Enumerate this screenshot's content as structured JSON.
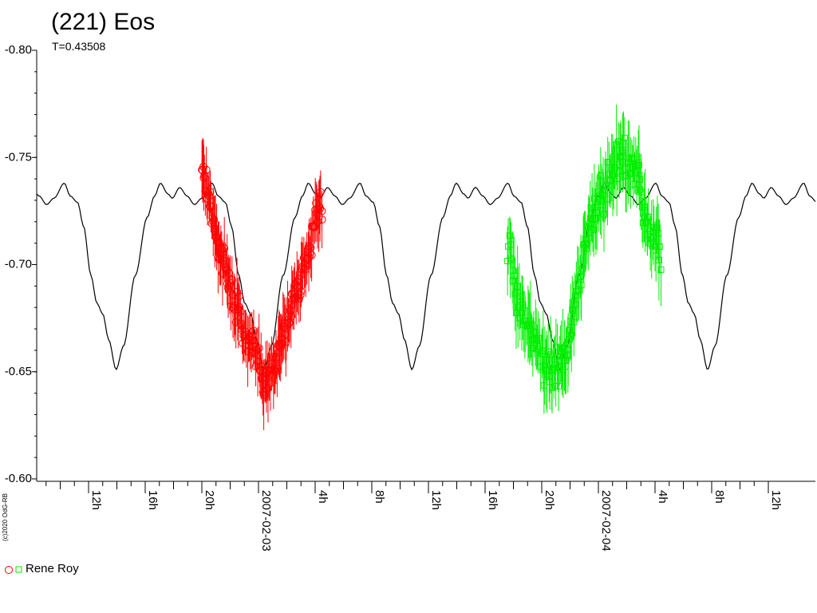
{
  "chart_data": {
    "type": "scatter",
    "title": "(221) Eos",
    "subtitle": "T=0.43508",
    "y_axis": {
      "range": [
        -0.8,
        -0.6
      ],
      "inverted": true,
      "ticks": [
        "-0.80",
        "-0.75",
        "-0.70",
        "-0.65",
        "-0.60"
      ],
      "tick_values": [
        -0.8,
        -0.75,
        -0.7,
        -0.65,
        -0.6
      ]
    },
    "x_axis": {
      "unit": "hours",
      "range_hours": [
        6.6,
        40.3
      ],
      "tick_labels": [
        {
          "label": "12h",
          "hour": 12
        },
        {
          "label": "16h",
          "hour": 16
        },
        {
          "label": "20h",
          "hour": 20
        },
        {
          "label": "2007-02-03",
          "hour": 24
        },
        {
          "label": "4h",
          "hour": 28
        },
        {
          "label": "8h",
          "hour": 32
        },
        {
          "label": "12h",
          "hour": 36
        },
        {
          "label": "16h",
          "hour": 40
        },
        {
          "label": "20h",
          "hour": 44
        },
        {
          "label": "2007-02-04",
          "hour": 48
        },
        {
          "label": "4h",
          "hour": 52
        },
        {
          "label": "8h",
          "hour": 56
        },
        {
          "label": "12h",
          "hour": 60
        }
      ]
    },
    "model_curve": {
      "period_hours": 10.4419,
      "color": "#000000",
      "points": [
        {
          "phase": 0.0,
          "mag": -0.731
        },
        {
          "phase": 0.05,
          "mag": -0.736
        },
        {
          "phase": 0.1,
          "mag": -0.732
        },
        {
          "phase": 0.15,
          "mag": -0.728
        },
        {
          "phase": 0.2,
          "mag": -0.731
        },
        {
          "phase": 0.27,
          "mag": -0.738
        },
        {
          "phase": 0.31,
          "mag": -0.732
        },
        {
          "phase": 0.36,
          "mag": -0.729
        },
        {
          "phase": 0.4,
          "mag": -0.718
        },
        {
          "phase": 0.45,
          "mag": -0.695
        },
        {
          "phase": 0.49,
          "mag": -0.682
        },
        {
          "phase": 0.53,
          "mag": -0.677
        },
        {
          "phase": 0.57,
          "mag": -0.665
        },
        {
          "phase": 0.62,
          "mag": -0.651
        },
        {
          "phase": 0.67,
          "mag": -0.662
        },
        {
          "phase": 0.75,
          "mag": -0.695
        },
        {
          "phase": 0.83,
          "mag": -0.722
        },
        {
          "phase": 0.88,
          "mag": -0.732
        },
        {
          "phase": 0.92,
          "mag": -0.738
        },
        {
          "phase": 0.97,
          "mag": -0.733
        },
        {
          "phase": 1.0,
          "mag": -0.731
        }
      ],
      "anchor_hour": 20.0,
      "anchor_phase": 0.2
    },
    "series": [
      {
        "name": "Rene Roy",
        "marker": "circle",
        "color": "#ff0000",
        "hour_range": [
          20.0,
          28.5
        ],
        "mag_trend": [
          {
            "hour": 20.0,
            "mag": -0.748
          },
          {
            "hour": 20.6,
            "mag": -0.728
          },
          {
            "hour": 21.3,
            "mag": -0.705
          },
          {
            "hour": 22.2,
            "mag": -0.685
          },
          {
            "hour": 23.0,
            "mag": -0.67
          },
          {
            "hour": 23.8,
            "mag": -0.658
          },
          {
            "hour": 24.4,
            "mag": -0.645
          },
          {
            "hour": 25.0,
            "mag": -0.65
          },
          {
            "hour": 25.8,
            "mag": -0.668
          },
          {
            "hour": 26.6,
            "mag": -0.688
          },
          {
            "hour": 27.4,
            "mag": -0.7
          },
          {
            "hour": 28.0,
            "mag": -0.718
          },
          {
            "hour": 28.5,
            "mag": -0.73
          }
        ],
        "count": 170,
        "scatter": 0.012,
        "errorbar": 0.012
      },
      {
        "name": "Rene Roy",
        "marker": "square",
        "color": "#00ee00",
        "hour_range": [
          41.6,
          52.4
        ],
        "mag_trend": [
          {
            "hour": 41.6,
            "mag": -0.715
          },
          {
            "hour": 42.0,
            "mag": -0.69
          },
          {
            "hour": 42.8,
            "mag": -0.675
          },
          {
            "hour": 43.6,
            "mag": -0.665
          },
          {
            "hour": 44.4,
            "mag": -0.652
          },
          {
            "hour": 45.0,
            "mag": -0.65
          },
          {
            "hour": 45.6,
            "mag": -0.655
          },
          {
            "hour": 46.0,
            "mag": -0.665
          },
          {
            "hour": 46.6,
            "mag": -0.69
          },
          {
            "hour": 47.4,
            "mag": -0.72
          },
          {
            "hour": 48.4,
            "mag": -0.735
          },
          {
            "hour": 49.6,
            "mag": -0.75
          },
          {
            "hour": 50.6,
            "mag": -0.745
          },
          {
            "hour": 51.4,
            "mag": -0.72
          },
          {
            "hour": 52.4,
            "mag": -0.705
          }
        ],
        "count": 190,
        "scatter": 0.014,
        "errorbar": 0.014
      }
    ],
    "legend": {
      "position": "bottom-left",
      "label": "Rene Roy"
    },
    "grid": false
  },
  "copyright": "(c)2020 OdG-RB"
}
